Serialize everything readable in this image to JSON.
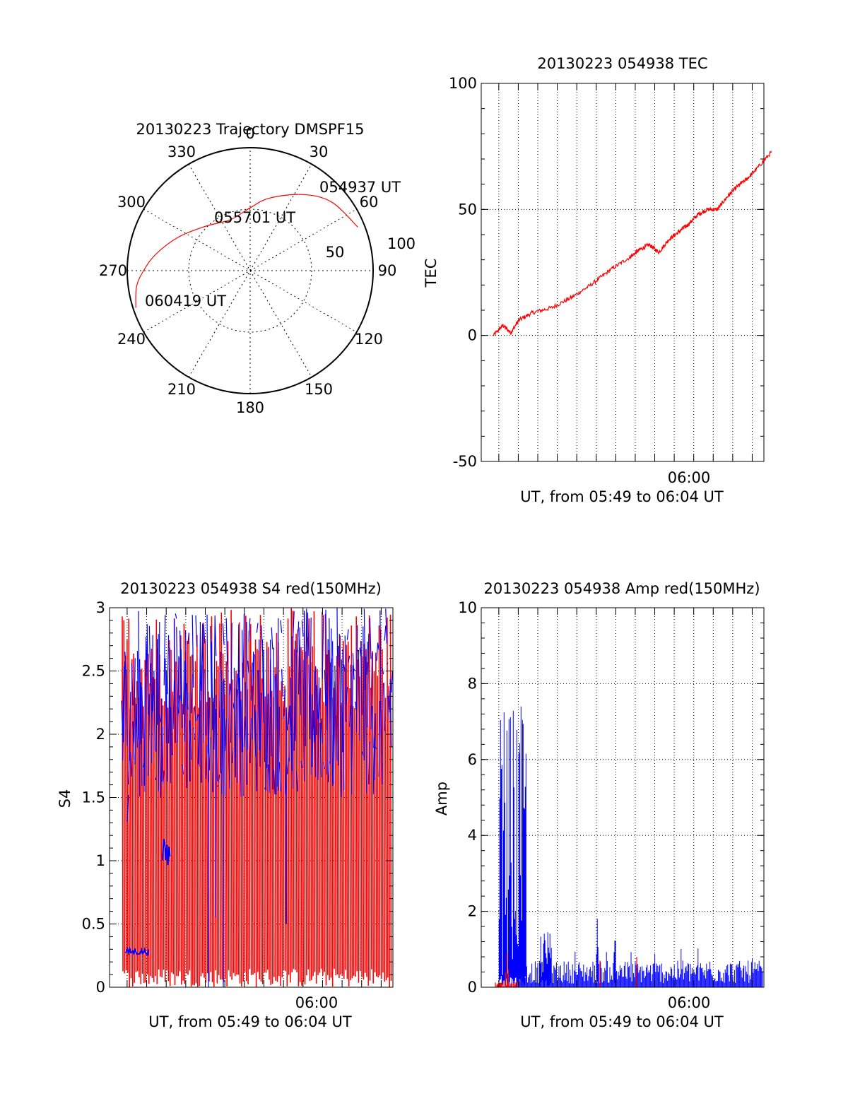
{
  "colors": {
    "red": "#ff0000",
    "blue": "#0000ff",
    "axis": "#000000"
  },
  "chart_data": [
    {
      "type": "polar",
      "title": "20130223 Trajectory DMSPF15",
      "azimuth_labels": [
        "0",
        "30",
        "60",
        "90",
        "120",
        "150",
        "180",
        "210",
        "240",
        "270",
        "300",
        "330"
      ],
      "elevation_labels": [
        "50",
        "100"
      ],
      "trajectory_points": [
        {
          "az": 68,
          "el": 5,
          "label": "054937 UT"
        },
        {
          "az": 50,
          "el": 12
        },
        {
          "az": 35,
          "el": 22
        },
        {
          "az": 15,
          "el": 35
        },
        {
          "az": 0,
          "el": 44
        },
        {
          "az": -21,
          "el": 50,
          "label": "055701 UT"
        },
        {
          "az": -45,
          "el": 44
        },
        {
          "az": -65,
          "el": 32
        },
        {
          "az": -80,
          "el": 20
        },
        {
          "az": -90,
          "el": 12
        },
        {
          "az": -98,
          "el": 6
        },
        {
          "az": -108,
          "el": 2,
          "label": "060419 UT"
        }
      ]
    },
    {
      "type": "line",
      "title": "20130223 054938 TEC",
      "ylabel": "TEC",
      "xlabel": "UT, from 05:49 to 06:04 UT",
      "xtick_label": "06:00",
      "ylim": [
        -50,
        100
      ],
      "yticks": [
        "-50",
        "0",
        "50",
        "100"
      ],
      "series": [
        {
          "color": "red",
          "x_minutes": [
            0,
            0.5,
            0.9,
            1.3,
            2,
            3,
            4,
            5,
            6,
            7,
            7.5,
            8,
            8.5,
            9,
            9.5,
            10,
            10.5,
            11,
            11.5,
            12,
            12.5,
            13,
            13.5,
            14.3
          ],
          "values": [
            0,
            4,
            1,
            6,
            9,
            11,
            15,
            20,
            26,
            31,
            34,
            36,
            33,
            38,
            41,
            44,
            48,
            50,
            50,
            55,
            59,
            62,
            66,
            73
          ]
        }
      ]
    },
    {
      "type": "line",
      "title": "20130223 054938 S4 red(150MHz)",
      "ylabel": "S4",
      "xlabel": "UT, from 05:49 to 06:04 UT",
      "xtick_label": "06:00",
      "ylim": [
        0,
        3
      ],
      "yticks": [
        "0",
        "0.5",
        "1",
        "1.5",
        "2",
        "2.5",
        "3"
      ],
      "series": [
        {
          "color": "red",
          "description_values": "rapid oscillation between 0 and 3",
          "range": [
            0,
            3
          ]
        },
        {
          "color": "blue",
          "segments": [
            {
              "x_minutes": [
                0.2,
                1.4
              ],
              "level": 0.28
            },
            {
              "x_minutes": [
                2.1,
                2.5
              ],
              "level": 1.05
            }
          ],
          "range": [
            0,
            3
          ]
        }
      ]
    },
    {
      "type": "line",
      "title": "20130223 054938 Amp red(150MHz)",
      "ylabel": "Amp",
      "xlabel": "UT, from 05:49 to 06:04 UT",
      "xtick_label": "06:00",
      "ylim": [
        0,
        10
      ],
      "yticks": [
        "0",
        "2",
        "4",
        "6",
        "8",
        "10"
      ],
      "series": [
        {
          "color": "blue",
          "bursts": [
            {
              "x_minutes": [
                0.3,
                1.7
              ],
              "max": 7.4,
              "min": 0.3
            },
            {
              "x_minutes": [
                2.4,
                3.0
              ],
              "max": 1.5,
              "min": 0.2
            },
            {
              "x_minutes": [
                5.3,
                5.4
              ],
              "max": 2.0,
              "min": 0.4
            },
            {
              "x_minutes": [
                6.2,
                6.3
              ],
              "max": 2.0,
              "min": 0.4
            }
          ],
          "baseline": [
            0.1,
            0.7
          ]
        },
        {
          "color": "red",
          "bursts": [
            {
              "x_minutes": [
                0.6,
                0.8
              ],
              "max": 1.0,
              "min": 0
            }
          ],
          "baseline": [
            0,
            0.1
          ]
        }
      ]
    }
  ]
}
